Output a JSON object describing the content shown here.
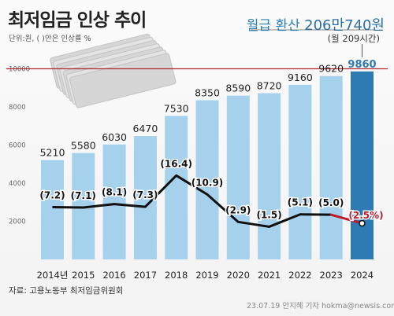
{
  "header": {
    "title": "최저임금 인상 추이",
    "unit": "단위:원, ( )안은 인상률 %"
  },
  "annotation": {
    "label": "월급 환산",
    "value": "206만740원",
    "sub": "(월 209시간)"
  },
  "footer": {
    "source": "자료: 고용노동부 최저임금위원회",
    "credit": "23.07.19 안지혜 기자 hokma@newsis.com"
  },
  "colors": {
    "bar": "#a6d1ec",
    "bar_highlight": "#2e7ab2",
    "rate_line": "#111111",
    "rate_highlight": "#c0192a",
    "reference_line": "#b02a2a"
  },
  "chart_data": {
    "type": "bar",
    "categories": [
      "2014년",
      "2015",
      "2016",
      "2017",
      "2018",
      "2019",
      "2020",
      "2021",
      "2022",
      "2023",
      "2024"
    ],
    "series": [
      {
        "values": [
          5210,
          5580,
          6030,
          6470,
          7530,
          8350,
          8590,
          8720,
          9160,
          9620,
          9860
        ]
      }
    ],
    "bar_labels": [
      "5210",
      "5580",
      "6030",
      "6470",
      "7530",
      "8350",
      "8590",
      "8720",
      "9160",
      "9620",
      "9860"
    ],
    "rate_series": {
      "type": "line",
      "values": [
        7.2,
        7.1,
        8.1,
        7.3,
        16.4,
        10.9,
        2.9,
        1.5,
        5.1,
        5.0,
        2.5
      ],
      "labels": [
        "(7.2)",
        "(7.1)",
        "(8.1)",
        "(7.3)",
        "(16.4)",
        "(10.9)",
        "(2.9)",
        "(1.5)",
        "(5.1)",
        "(5.0)",
        "(2.5%)"
      ]
    },
    "y_ticks": [
      "2000",
      "4000",
      "6000",
      "8000",
      "10000"
    ],
    "ylim": [
      0,
      11000
    ],
    "reference_value": 10000,
    "highlight_index": 10,
    "grid": false
  }
}
